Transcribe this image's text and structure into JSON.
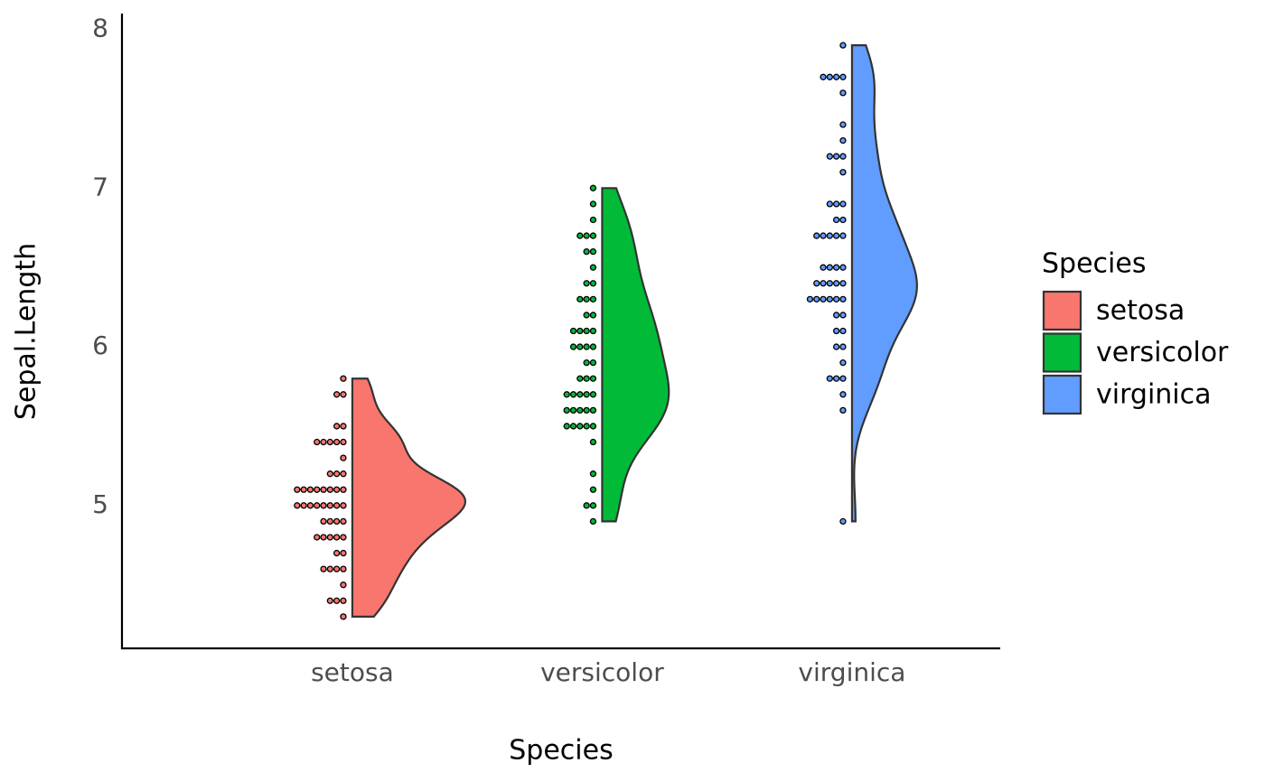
{
  "chart_data": {
    "type": "halfviolin-dotplot",
    "x_label": "Species",
    "y_label": "Sepal.Length",
    "legend_title": "Species",
    "legend": "right",
    "categories": [
      "setosa",
      "versicolor",
      "virginica"
    ],
    "series": [
      {
        "name": "setosa",
        "color": "#F8766D",
        "values": [
          5.1,
          4.9,
          4.7,
          4.6,
          5.0,
          5.4,
          4.6,
          5.0,
          4.4,
          4.9,
          5.4,
          4.8,
          4.8,
          4.3,
          5.8,
          5.7,
          5.4,
          5.1,
          5.7,
          5.1,
          5.4,
          5.1,
          4.6,
          5.1,
          4.8,
          5.0,
          5.0,
          5.2,
          5.2,
          4.7,
          4.8,
          5.4,
          5.2,
          5.5,
          4.9,
          5.0,
          5.5,
          4.9,
          4.4,
          5.1,
          5.0,
          4.5,
          4.4,
          5.0,
          5.1,
          4.8,
          5.1,
          4.6,
          5.3,
          5.0
        ]
      },
      {
        "name": "versicolor",
        "color": "#00BA38",
        "values": [
          7.0,
          6.4,
          6.9,
          5.5,
          6.5,
          5.7,
          6.3,
          4.9,
          6.6,
          5.2,
          5.0,
          5.9,
          6.0,
          6.1,
          5.6,
          6.7,
          5.6,
          5.8,
          6.2,
          5.6,
          5.9,
          6.1,
          6.3,
          6.1,
          6.4,
          6.6,
          6.8,
          6.7,
          6.0,
          5.7,
          5.5,
          5.5,
          5.8,
          6.0,
          5.4,
          6.0,
          6.7,
          6.3,
          5.6,
          5.5,
          5.5,
          6.1,
          5.8,
          5.0,
          5.6,
          5.7,
          5.7,
          6.2,
          5.1,
          5.7
        ]
      },
      {
        "name": "virginica",
        "color": "#619CFF",
        "values": [
          6.3,
          5.8,
          7.1,
          6.3,
          6.5,
          7.6,
          4.9,
          7.3,
          6.7,
          7.2,
          6.5,
          6.4,
          6.8,
          5.7,
          5.8,
          6.4,
          6.5,
          7.7,
          7.7,
          6.0,
          6.9,
          5.6,
          7.7,
          6.3,
          6.7,
          7.2,
          6.2,
          6.1,
          6.4,
          7.2,
          7.4,
          7.9,
          6.4,
          6.3,
          6.1,
          7.7,
          6.3,
          6.4,
          6.0,
          6.9,
          6.7,
          6.9,
          5.8,
          6.8,
          6.7,
          6.7,
          6.3,
          6.5,
          6.2,
          5.9
        ]
      }
    ],
    "ylim": [
      4.1,
      8.1
    ],
    "yticks": [
      5,
      6,
      7,
      8
    ],
    "grid": false
  }
}
